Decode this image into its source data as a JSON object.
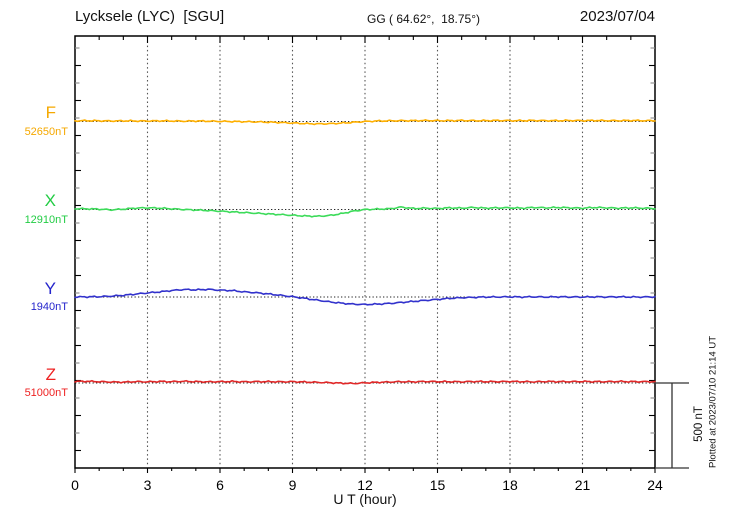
{
  "header": {
    "station": "Lycksele (LYC)  [SGU]",
    "coordinates": "GG ( 64.62°,  18.75°)",
    "date": "2023/07/04"
  },
  "axis": {
    "xlabel": "U T (hour)",
    "x_tick_labels": [
      "0",
      "3",
      "6",
      "9",
      "12",
      "15",
      "18",
      "21",
      "24"
    ]
  },
  "scale_bar": {
    "label": "500 nT",
    "span_nT": 500
  },
  "footer": {
    "plotted_note": "Plotted at 2023/07/10 21:14 UT"
  },
  "components": [
    {
      "letter": "F",
      "value_label": "52650nT",
      "color": "#ffb000"
    },
    {
      "letter": "X",
      "value_label": "12910nT",
      "color": "#3ddb5a"
    },
    {
      "letter": "Y",
      "value_label": "1940nT",
      "color": "#3232cc"
    },
    {
      "letter": "Z",
      "value_label": "51000nT",
      "color": "#e02828"
    }
  ],
  "chart_data": {
    "type": "line",
    "title": "Lycksele (LYC) [SGU]",
    "subtitle": "GG ( 64.62°, 18.75°)",
    "date": "2023/07/04",
    "xlabel": "U T (hour)",
    "xlim": [
      0,
      24
    ],
    "x_major_ticks": [
      0,
      3,
      6,
      9,
      12,
      15,
      18,
      21,
      24
    ],
    "grid_hours": [
      3,
      6,
      9,
      12,
      15,
      18,
      21
    ],
    "grid": "vertical-dotted-every-3h, dotted-horizontal-baseline-per-series",
    "legend_position": "left-margin-labels",
    "scale_bar_nT": 500,
    "sample_step_hours": 0.5,
    "series": [
      {
        "name": "F",
        "color": "#ffb000",
        "baseline_nT": 52650,
        "offsets_nT": [
          4,
          5,
          4,
          3,
          4,
          3,
          3,
          4,
          3,
          2,
          3,
          2,
          1,
          0,
          -1,
          -2,
          -4,
          -6,
          -9,
          -12,
          -14,
          -13,
          -10,
          -5,
          0,
          3,
          4,
          5,
          5,
          6,
          5,
          5,
          6,
          5,
          5,
          6,
          5,
          5,
          6,
          5,
          5,
          6,
          5,
          6,
          5,
          5,
          6,
          5,
          5
        ]
      },
      {
        "name": "X",
        "color": "#3ddb5a",
        "baseline_nT": 12910,
        "offsets_nT": [
          5,
          4,
          2,
          -2,
          2,
          8,
          10,
          8,
          4,
          0,
          -3,
          -6,
          -10,
          -14,
          -18,
          -22,
          -26,
          -30,
          -34,
          -38,
          -40,
          -36,
          -25,
          -10,
          0,
          2,
          4,
          14,
          6,
          8,
          6,
          10,
          8,
          12,
          8,
          10,
          10,
          8,
          12,
          10,
          12,
          10,
          8,
          12,
          10,
          8,
          10,
          8,
          6
        ]
      },
      {
        "name": "Y",
        "color": "#3232cc",
        "baseline_nT": 1940,
        "offsets_nT": [
          0,
          1,
          2,
          5,
          10,
          17,
          24,
          30,
          38,
          44,
          42,
          45,
          40,
          38,
          30,
          25,
          18,
          10,
          2,
          -8,
          -18,
          -28,
          -36,
          -42,
          -44,
          -42,
          -38,
          -32,
          -26,
          -20,
          -14,
          -8,
          -4,
          -2,
          0,
          0,
          1,
          0,
          1,
          0,
          1,
          0,
          0,
          1,
          0,
          1,
          0,
          0,
          1
        ]
      },
      {
        "name": "Z",
        "color": "#e02828",
        "baseline_nT": 51000,
        "offsets_nT": [
          9,
          10,
          8,
          6,
          5,
          8,
          7,
          9,
          8,
          10,
          8,
          7,
          8,
          9,
          7,
          8,
          8,
          7,
          8,
          6,
          4,
          2,
          -1,
          -3,
          1,
          4,
          6,
          8,
          7,
          9,
          8,
          8,
          7,
          9,
          8,
          8,
          9,
          8,
          7,
          9,
          8,
          8,
          9,
          8,
          8,
          9,
          8,
          8,
          8
        ]
      }
    ]
  }
}
